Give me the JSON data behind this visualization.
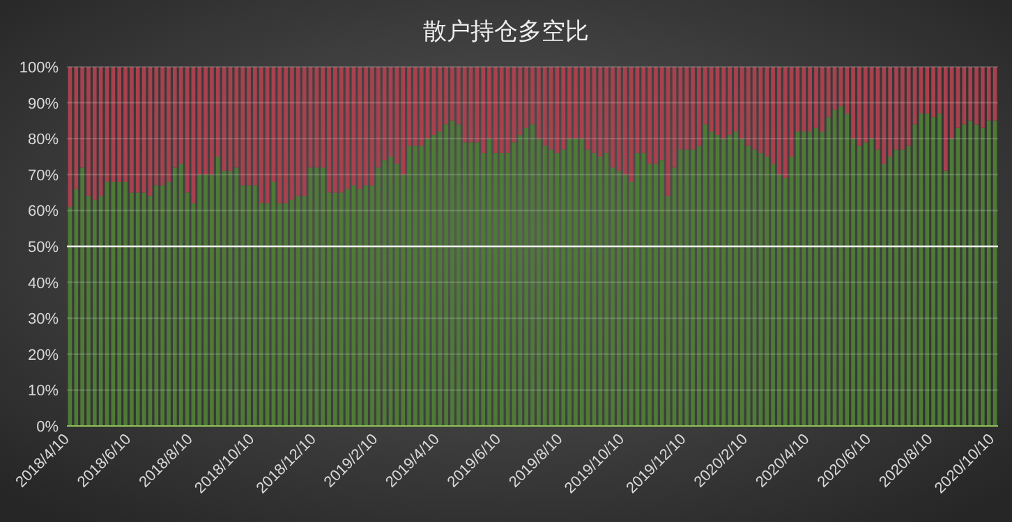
{
  "chart_data": {
    "type": "bar",
    "title": "散户持仓多空比",
    "stacked": true,
    "grid": "y",
    "categories": [
      "2018/4/10",
      null,
      null,
      null,
      null,
      null,
      null,
      null,
      null,
      null,
      "2018/6/10",
      null,
      null,
      null,
      null,
      null,
      null,
      null,
      null,
      null,
      "2018/8/10",
      null,
      null,
      null,
      null,
      null,
      null,
      null,
      null,
      null,
      "2018/10/10",
      null,
      null,
      null,
      null,
      null,
      null,
      null,
      null,
      null,
      "2018/12/10",
      null,
      null,
      null,
      null,
      null,
      null,
      null,
      null,
      null,
      "2019/2/10",
      null,
      null,
      null,
      null,
      null,
      null,
      null,
      null,
      null,
      "2019/4/10",
      null,
      null,
      null,
      null,
      null,
      null,
      null,
      null,
      null,
      "2019/6/10",
      null,
      null,
      null,
      null,
      null,
      null,
      null,
      null,
      null,
      "2019/8/10",
      null,
      null,
      null,
      null,
      null,
      null,
      null,
      null,
      null,
      "2019/10/10",
      null,
      null,
      null,
      null,
      null,
      null,
      null,
      null,
      null,
      "2019/12/10",
      null,
      null,
      null,
      null,
      null,
      null,
      null,
      null,
      null,
      "2020/2/10",
      null,
      null,
      null,
      null,
      null,
      null,
      null,
      null,
      null,
      "2020/4/10",
      null,
      null,
      null,
      null,
      null,
      null,
      null,
      null,
      null,
      "2020/6/10",
      null,
      null,
      null,
      null,
      null,
      null,
      null,
      null,
      null,
      "2020/8/10",
      null,
      null,
      null,
      null,
      null,
      null,
      null,
      null,
      null,
      "2020/10/10"
    ],
    "series": [
      {
        "color": "#4e7a36",
        "values": [
          61,
          66,
          72,
          64,
          63,
          64,
          68,
          68,
          68,
          68,
          65,
          65,
          65,
          64,
          67,
          67,
          68,
          72,
          73,
          65,
          62,
          70,
          70,
          70,
          75,
          71,
          71,
          72,
          67,
          67,
          67,
          62,
          62,
          68,
          62,
          62,
          63,
          64,
          64,
          72,
          72,
          72,
          65,
          65,
          65,
          66,
          67,
          66,
          67,
          67,
          72,
          74,
          75,
          73,
          70,
          78,
          78,
          78,
          80,
          81,
          82,
          84,
          85,
          84,
          79,
          79,
          79,
          76,
          80,
          76,
          76,
          76,
          79,
          81,
          83,
          84,
          80,
          78,
          77,
          76,
          77,
          80,
          80,
          80,
          77,
          76,
          75,
          76,
          72,
          71,
          70,
          68,
          76,
          76,
          73,
          73,
          74,
          64,
          72,
          77,
          77,
          77,
          78,
          84,
          82,
          81,
          80,
          81,
          82,
          80,
          78,
          77,
          76,
          75,
          73,
          70,
          69,
          75,
          82,
          82,
          82,
          83,
          82,
          86,
          88,
          89,
          87,
          80,
          78,
          79,
          80,
          77,
          73,
          75,
          77,
          77,
          78,
          84,
          87,
          87,
          86,
          87,
          71,
          80,
          83,
          84,
          85,
          84,
          83,
          85,
          85
        ]
      },
      {
        "color": "#a8414e",
        "values": [
          39,
          34,
          28,
          36,
          37,
          36,
          32,
          32,
          32,
          32,
          35,
          35,
          35,
          36,
          33,
          33,
          32,
          28,
          27,
          35,
          38,
          30,
          30,
          30,
          25,
          29,
          29,
          28,
          33,
          33,
          33,
          38,
          38,
          32,
          38,
          38,
          37,
          36,
          36,
          28,
          28,
          28,
          35,
          35,
          35,
          34,
          33,
          34,
          33,
          33,
          28,
          26,
          25,
          27,
          30,
          22,
          22,
          22,
          20,
          19,
          18,
          16,
          15,
          16,
          21,
          21,
          21,
          24,
          20,
          24,
          24,
          24,
          21,
          19,
          17,
          16,
          20,
          22,
          23,
          24,
          23,
          20,
          20,
          20,
          23,
          24,
          25,
          24,
          28,
          29,
          30,
          32,
          24,
          24,
          27,
          27,
          26,
          36,
          28,
          23,
          23,
          23,
          22,
          16,
          18,
          19,
          20,
          19,
          18,
          20,
          22,
          23,
          24,
          25,
          27,
          30,
          31,
          25,
          18,
          18,
          18,
          17,
          18,
          14,
          12,
          11,
          13,
          20,
          22,
          21,
          20,
          23,
          27,
          25,
          23,
          23,
          22,
          16,
          13,
          13,
          14,
          13,
          29,
          20,
          17,
          16,
          15,
          16,
          17,
          15,
          15
        ]
      }
    ],
    "ylim": [
      0,
      100
    ],
    "yticks": [
      {
        "value": 0,
        "label": "0%"
      },
      {
        "value": 10,
        "label": "10%"
      },
      {
        "value": 20,
        "label": "20%"
      },
      {
        "value": 30,
        "label": "30%"
      },
      {
        "value": 40,
        "label": "40%"
      },
      {
        "value": 50,
        "label": "50%"
      },
      {
        "value": 60,
        "label": "60%"
      },
      {
        "value": 70,
        "label": "70%"
      },
      {
        "value": 80,
        "label": "80%"
      },
      {
        "value": 90,
        "label": "90%"
      },
      {
        "value": 100,
        "label": "100%"
      }
    ],
    "ref_lines": [
      {
        "axis": "y",
        "value": 50,
        "color": "#ffffff"
      }
    ]
  }
}
